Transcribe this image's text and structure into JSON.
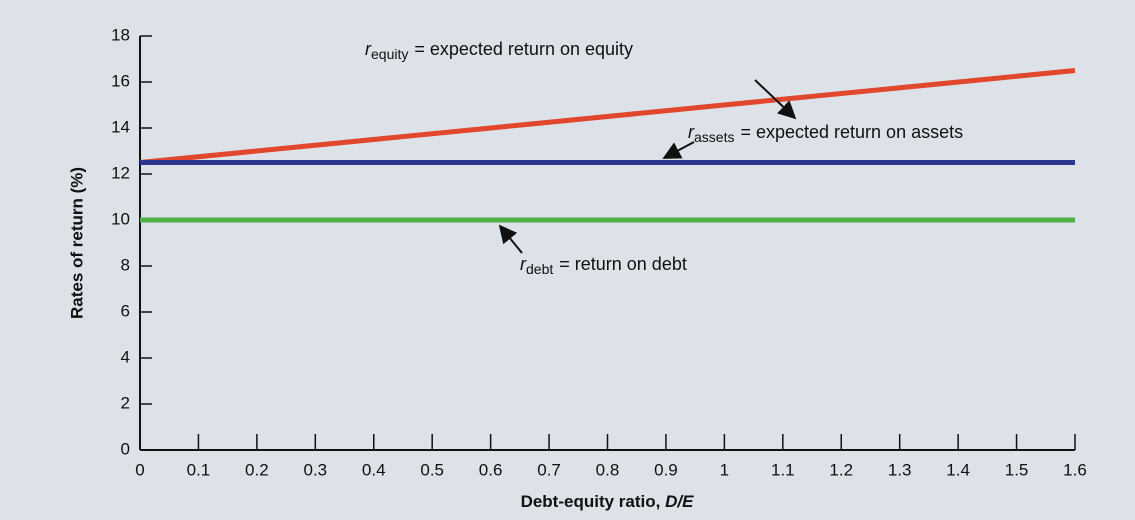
{
  "chart_data": {
    "type": "line",
    "x": [
      0,
      1.6
    ],
    "series": [
      {
        "color": "#e0472c",
        "values": [
          12.5,
          16.5
        ],
        "label": {
          "symbol": "r",
          "subscript": "equity",
          "text": "= expected return on equity"
        }
      },
      {
        "color": "#2c3890",
        "values": [
          12.5,
          12.5
        ],
        "label": {
          "symbol": "r",
          "subscript": "assets",
          "text": "= expected return on assets"
        }
      },
      {
        "color": "#4fb046",
        "values": [
          10,
          10
        ],
        "label": {
          "symbol": "r",
          "subscript": "debt",
          "text": "= return on debt"
        }
      }
    ],
    "xlabel": {
      "text": "Debt-equity ratio,",
      "italic": "D/E"
    },
    "ylabel": "Rates of return (%)",
    "xlim": [
      0,
      1.6
    ],
    "xticks": [
      0,
      0.1,
      0.2,
      0.3,
      0.4,
      0.5,
      0.6,
      0.7,
      0.8,
      0.9,
      1,
      1.1,
      1.2,
      1.3,
      1.4,
      1.5,
      1.6
    ],
    "ylim": [
      0,
      18
    ],
    "yticks": [
      0,
      2,
      4,
      6,
      8,
      10,
      12,
      14,
      16,
      18
    ]
  }
}
